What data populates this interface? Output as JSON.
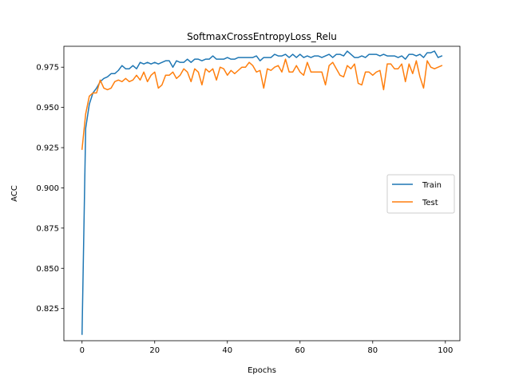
{
  "chart_data": {
    "type": "line",
    "title": "SoftmaxCrossEntropyLoss_Relu",
    "xlabel": "Epochs",
    "ylabel": "ACC",
    "xlim": [
      -5,
      104
    ],
    "ylim": [
      0.805,
      0.988
    ],
    "xticks": [
      0,
      20,
      40,
      60,
      80,
      100
    ],
    "yticks": [
      0.825,
      0.85,
      0.875,
      0.9,
      0.925,
      0.95,
      0.975
    ],
    "ytick_labels": [
      "0.825",
      "0.850",
      "0.875",
      "0.900",
      "0.925",
      "0.950",
      "0.975"
    ],
    "grid": false,
    "legend_position": "center-right",
    "x": [
      0,
      1,
      2,
      3,
      4,
      5,
      6,
      7,
      8,
      9,
      10,
      11,
      12,
      13,
      14,
      15,
      16,
      17,
      18,
      19,
      20,
      21,
      22,
      23,
      24,
      25,
      26,
      27,
      28,
      29,
      30,
      31,
      32,
      33,
      34,
      35,
      36,
      37,
      38,
      39,
      40,
      41,
      42,
      43,
      44,
      45,
      46,
      47,
      48,
      49,
      50,
      51,
      52,
      53,
      54,
      55,
      56,
      57,
      58,
      59,
      60,
      61,
      62,
      63,
      64,
      65,
      66,
      67,
      68,
      69,
      70,
      71,
      72,
      73,
      74,
      75,
      76,
      77,
      78,
      79,
      80,
      81,
      82,
      83,
      84,
      85,
      86,
      87,
      88,
      89,
      90,
      91,
      92,
      93,
      94,
      95,
      96,
      97,
      98,
      99
    ],
    "series": [
      {
        "name": "Train",
        "color": "#1f77b4",
        "values": [
          0.809,
          0.937,
          0.952,
          0.959,
          0.962,
          0.966,
          0.968,
          0.969,
          0.971,
          0.971,
          0.973,
          0.976,
          0.974,
          0.974,
          0.976,
          0.974,
          0.978,
          0.977,
          0.978,
          0.977,
          0.978,
          0.977,
          0.978,
          0.979,
          0.979,
          0.975,
          0.979,
          0.978,
          0.978,
          0.98,
          0.978,
          0.98,
          0.98,
          0.979,
          0.98,
          0.98,
          0.982,
          0.98,
          0.98,
          0.98,
          0.981,
          0.98,
          0.98,
          0.981,
          0.981,
          0.981,
          0.981,
          0.981,
          0.982,
          0.979,
          0.981,
          0.981,
          0.981,
          0.983,
          0.982,
          0.982,
          0.983,
          0.981,
          0.983,
          0.981,
          0.983,
          0.981,
          0.982,
          0.981,
          0.982,
          0.982,
          0.981,
          0.982,
          0.983,
          0.981,
          0.983,
          0.983,
          0.982,
          0.985,
          0.983,
          0.981,
          0.981,
          0.982,
          0.981,
          0.983,
          0.983,
          0.983,
          0.982,
          0.983,
          0.982,
          0.982,
          0.982,
          0.981,
          0.982,
          0.98,
          0.983,
          0.983,
          0.982,
          0.983,
          0.981,
          0.984,
          0.984,
          0.985,
          0.981,
          0.982
        ]
      },
      {
        "name": "Test",
        "color": "#ff7f0e",
        "values": [
          0.924,
          0.946,
          0.957,
          0.959,
          0.959,
          0.967,
          0.962,
          0.961,
          0.962,
          0.966,
          0.967,
          0.966,
          0.968,
          0.966,
          0.967,
          0.97,
          0.967,
          0.972,
          0.966,
          0.97,
          0.972,
          0.962,
          0.964,
          0.97,
          0.97,
          0.972,
          0.968,
          0.97,
          0.974,
          0.972,
          0.966,
          0.974,
          0.972,
          0.964,
          0.974,
          0.972,
          0.974,
          0.967,
          0.975,
          0.974,
          0.97,
          0.973,
          0.971,
          0.973,
          0.975,
          0.975,
          0.978,
          0.976,
          0.972,
          0.973,
          0.962,
          0.974,
          0.973,
          0.975,
          0.976,
          0.972,
          0.98,
          0.972,
          0.972,
          0.976,
          0.972,
          0.97,
          0.978,
          0.972,
          0.972,
          0.972,
          0.972,
          0.964,
          0.976,
          0.978,
          0.974,
          0.97,
          0.969,
          0.976,
          0.974,
          0.977,
          0.965,
          0.964,
          0.972,
          0.972,
          0.97,
          0.972,
          0.973,
          0.961,
          0.977,
          0.977,
          0.974,
          0.974,
          0.977,
          0.966,
          0.977,
          0.971,
          0.979,
          0.969,
          0.962,
          0.979,
          0.975,
          0.974,
          0.975,
          0.976
        ]
      }
    ]
  }
}
